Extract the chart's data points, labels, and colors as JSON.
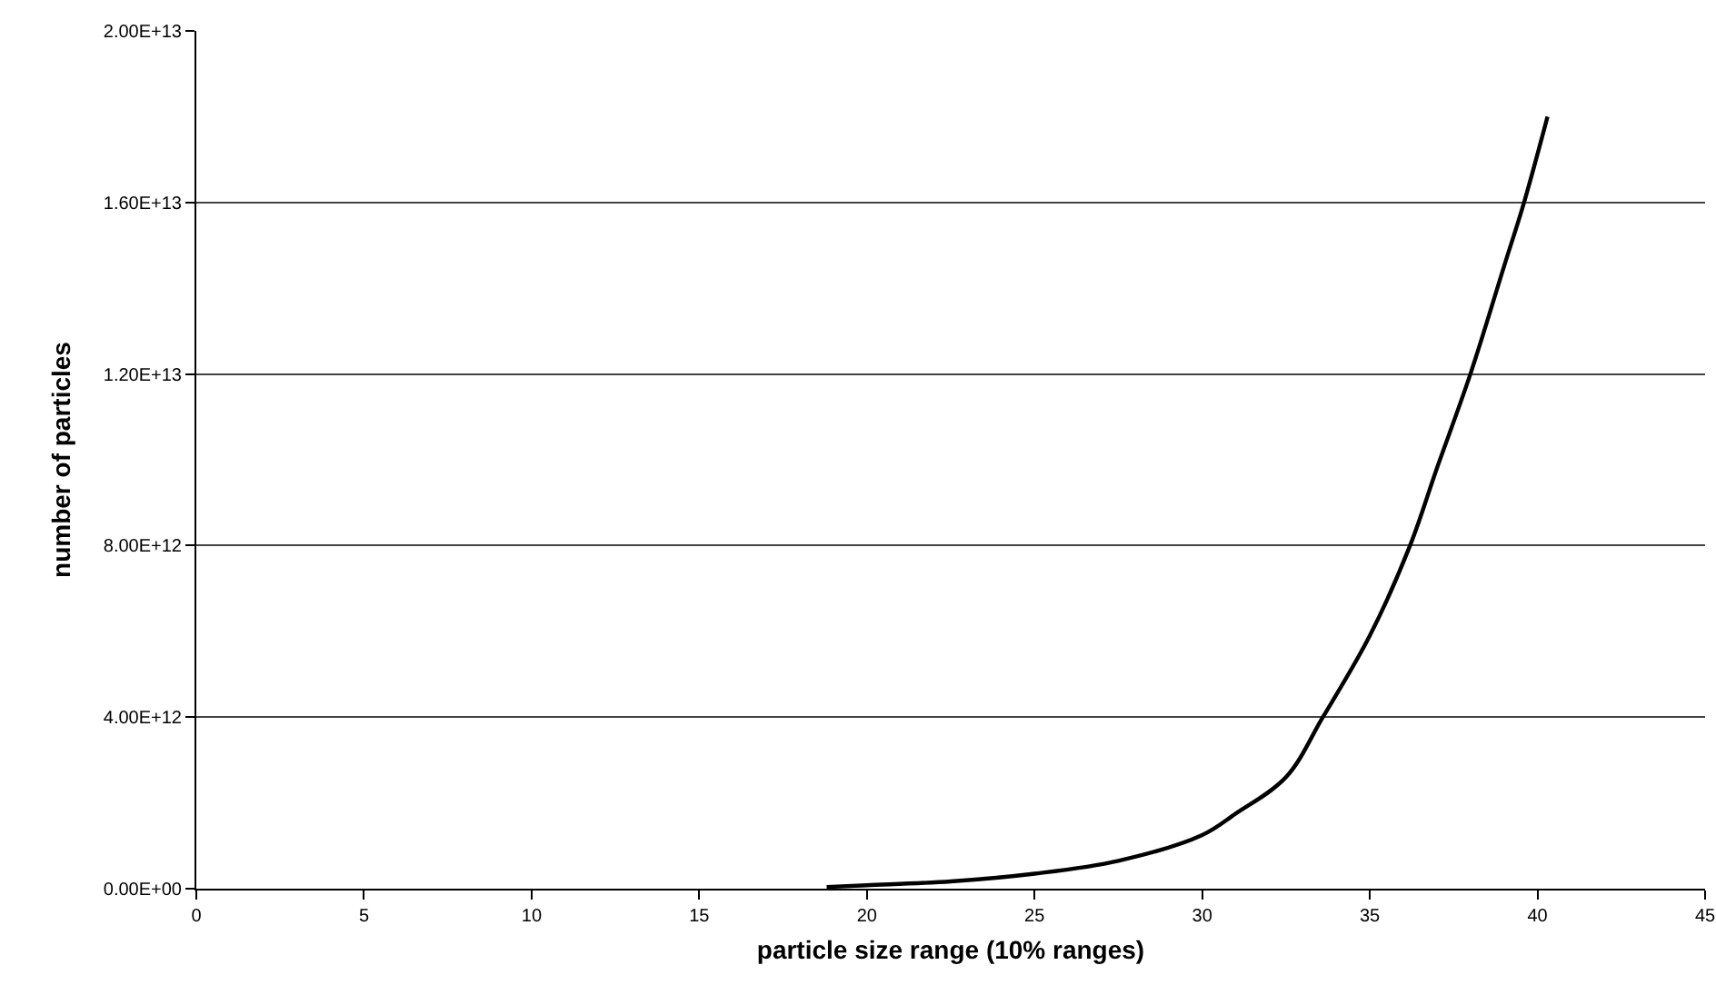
{
  "chart_data": {
    "type": "line",
    "xlabel": "particle size range (10% ranges)",
    "ylabel": "number of particles",
    "x": [
      18.8,
      20,
      22.5,
      25,
      27.5,
      30,
      31,
      32.5,
      33.6,
      35,
      36.2,
      37,
      38,
      39,
      39.6,
      40.3
    ],
    "series": [
      {
        "color": "#000000",
        "values": [
          40000000000.0,
          80000000000.0,
          170000000000.0,
          350000000000.0,
          650000000000.0,
          1250000000000.0,
          1750000000000.0,
          2600000000000.0,
          4000000000000.0,
          5900000000000.0,
          8000000000000.0,
          9800000000000.0,
          12000000000000.0,
          14500000000000.0,
          16000000000000.0,
          18000000000000.0
        ]
      }
    ],
    "xlim": [
      0,
      45
    ],
    "xticks": [
      0,
      5,
      10,
      15,
      20,
      25,
      30,
      35,
      40,
      45
    ],
    "ylim": [
      0,
      20000000000000.0
    ],
    "yticks": [
      {
        "value": 0,
        "label": "0.00E+00"
      },
      {
        "value": 4000000000000.0,
        "label": "4.00E+12"
      },
      {
        "value": 8000000000000.0,
        "label": "8.00E+12"
      },
      {
        "value": 12000000000000.0,
        "label": "1.20E+13"
      },
      {
        "value": 16000000000000.0,
        "label": "1.60E+13"
      },
      {
        "value": 20000000000000.0,
        "label": "2.00E+13"
      }
    ],
    "grid": "y",
    "marker": "none",
    "line_style": "solid"
  }
}
